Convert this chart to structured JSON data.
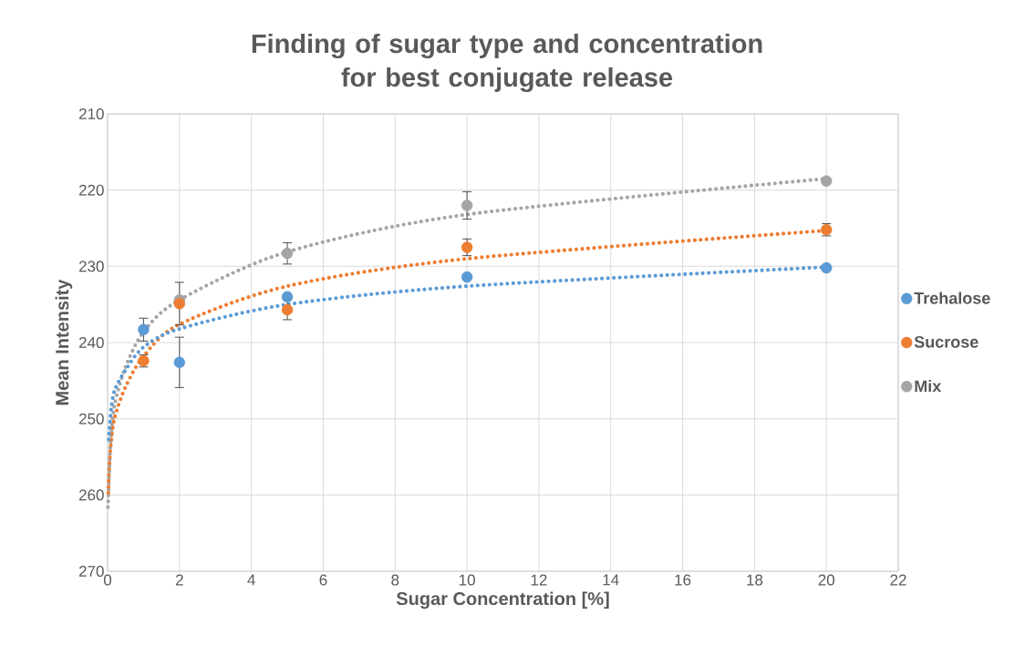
{
  "chart_data": {
    "type": "scatter",
    "title": "Finding of sugar type and concentration for best conjugate release",
    "xlabel": "Sugar Concentration [%]",
    "ylabel": "Mean Intensity",
    "x": [
      1,
      2,
      5,
      10,
      20
    ],
    "series": [
      {
        "name": "Trehalose",
        "marker": "circle",
        "color": "#5b9bd5",
        "values": [
          238.3,
          242.6,
          234.0,
          231.4,
          230.2
        ],
        "errors": [
          1.5,
          3.3,
          null,
          null,
          null
        ]
      },
      {
        "name": "Sucrose",
        "marker": "circle",
        "color": "#ed7d31",
        "values": [
          242.4,
          234.9,
          235.7,
          227.5,
          225.2
        ],
        "errors": [
          0.8,
          2.8,
          1.3,
          1.1,
          0.8
        ]
      },
      {
        "name": "Mix",
        "marker": "circle",
        "color": "#a5a5a5",
        "values": [
          null,
          234.4,
          228.3,
          222.0,
          218.8
        ],
        "errors": [
          null,
          null,
          1.4,
          1.8,
          null
        ]
      },
      {
        "type": "line",
        "line_style": "dotted",
        "marker": "none",
        "color": "#5b9bd5",
        "x": [
          0.03,
          0.05,
          0.1,
          0.2,
          0.5,
          1,
          2,
          5,
          10,
          20
        ],
        "values": [
          252.7,
          251.5,
          248.7,
          246.2,
          243.6,
          240.6,
          238.2,
          235.0,
          232.6,
          230.1
        ]
      },
      {
        "type": "line",
        "line_style": "dotted",
        "marker": "none",
        "color": "#ed7d31",
        "x": [
          0.02,
          0.05,
          0.1,
          0.2,
          0.5,
          1,
          2,
          5,
          10,
          20
        ],
        "values": [
          259.7,
          256.0,
          253.0,
          249.8,
          245.8,
          241.8,
          237.6,
          232.6,
          229.0,
          225.3
        ]
      },
      {
        "type": "line",
        "line_style": "dotted",
        "marker": "none",
        "color": "#a5a5a5",
        "x": [
          0.01,
          0.05,
          0.1,
          0.2,
          0.5,
          1,
          2,
          5,
          10,
          20
        ],
        "values": [
          261.6,
          256.4,
          252.0,
          248.0,
          243.2,
          238.6,
          234.4,
          228.1,
          223.2,
          218.5
        ]
      }
    ],
    "xlim": [
      0,
      22
    ],
    "xticks": [
      0,
      2,
      4,
      6,
      8,
      10,
      12,
      14,
      16,
      18,
      20,
      22
    ],
    "ylim": [
      270,
      210
    ],
    "yticks": [
      210,
      220,
      230,
      240,
      250,
      260,
      270
    ],
    "grid": true,
    "legend": "right"
  }
}
